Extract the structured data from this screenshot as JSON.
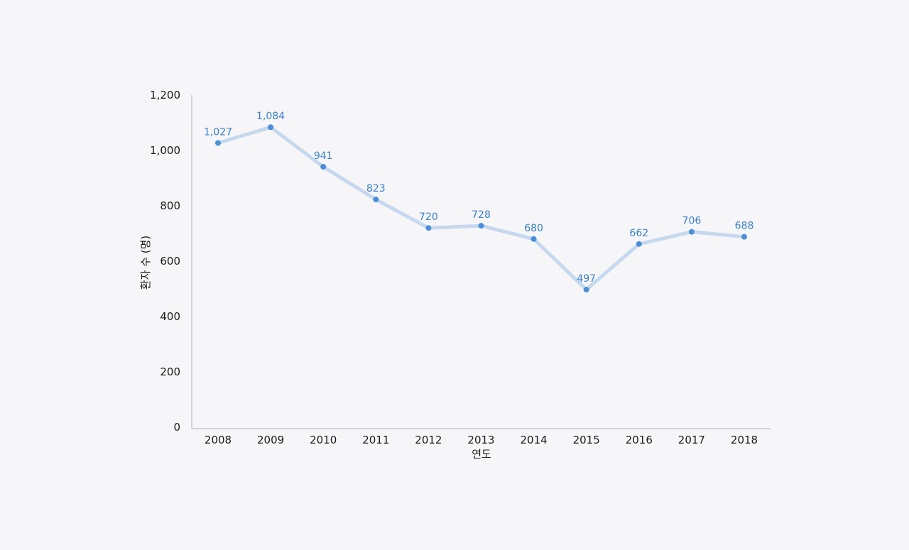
{
  "chart_data": {
    "type": "line",
    "title": "",
    "xlabel": "연도",
    "ylabel": "환자 수 (명)",
    "categories": [
      "2008",
      "2009",
      "2010",
      "2011",
      "2012",
      "2013",
      "2014",
      "2015",
      "2016",
      "2017",
      "2018"
    ],
    "series": [
      {
        "values": [
          1027,
          1084,
          941,
          823,
          720,
          728,
          680,
          497,
          662,
          706,
          688
        ],
        "data_labels": [
          "1,027",
          "1,084",
          "941",
          "823",
          "720",
          "728",
          "680",
          "497",
          "662",
          "706",
          "688"
        ]
      }
    ],
    "ylim": [
      0,
      1200
    ],
    "yticks": [
      0,
      200,
      400,
      600,
      800,
      1000,
      1200
    ],
    "ytick_labels": [
      "0",
      "200",
      "400",
      "600",
      "800",
      "1,000",
      "1,200"
    ],
    "grid": false,
    "legend": "none"
  },
  "colors": {
    "line": "#c5d8ee",
    "marker": "#4a8fd6",
    "data_label": "#3a7fcb",
    "axis": "#c8c8cc",
    "text": "#1a1a1a"
  }
}
